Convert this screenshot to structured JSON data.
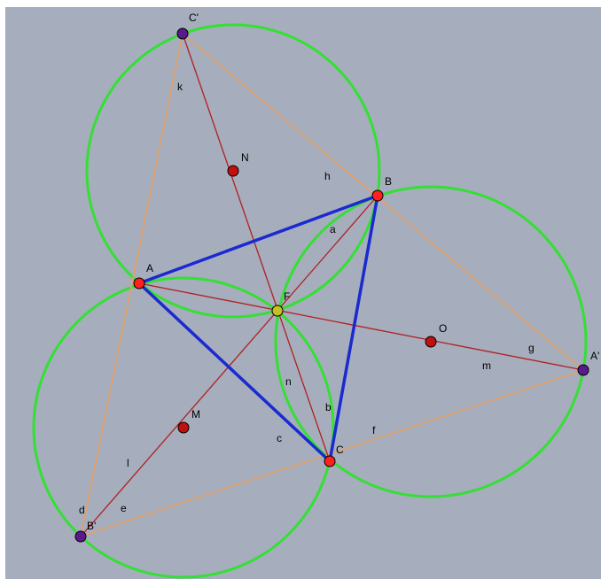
{
  "points": [
    "C'",
    "N",
    "B",
    "A",
    "F",
    "O",
    "A'",
    "C",
    "M",
    "B'"
  ],
  "line_labels": [
    "k",
    "h",
    "a",
    "g",
    "m",
    "f",
    "n",
    "b",
    "c",
    "l",
    "d",
    "e"
  ]
}
